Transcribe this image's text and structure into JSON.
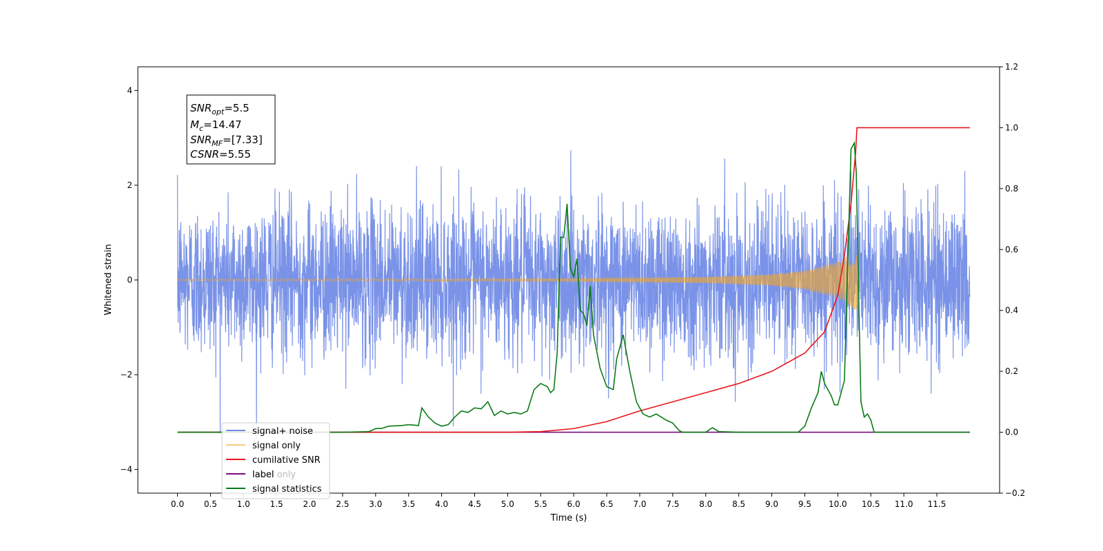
{
  "chart_data": {
    "type": "line",
    "title": "",
    "xlabel": "Time (s)",
    "ylabel": "Whitened strain",
    "y2label": "",
    "xlim": [
      -0.6,
      12.45
    ],
    "ylim": [
      -4.5,
      4.5
    ],
    "y2lim": [
      -0.2,
      1.2
    ],
    "x_ticks": [
      "0.0",
      "0.5",
      "1.0",
      "1.5",
      "2.0",
      "2.5",
      "3.0",
      "3.5",
      "4.0",
      "4.5",
      "5.0",
      "5.5",
      "6.0",
      "6.5",
      "7.0",
      "7.5",
      "8.0",
      "8.5",
      "9.0",
      "9.5",
      "10.0",
      "10.5",
      "11.0",
      "11.5"
    ],
    "y_ticks": [
      "4",
      "2",
      "0",
      "−2",
      "−4"
    ],
    "y2_ticks": [
      "1.2",
      "1.0",
      "0.8",
      "0.6",
      "0.4",
      "0.2",
      "0.0",
      "−0.2"
    ],
    "grid": false,
    "legend_position": "lower-left",
    "colors": {
      "signal_noise": "#6b87e6",
      "signal_only": "#f5a623",
      "cumulative_snr": "#e8141a",
      "label": "#7b0a7b",
      "signal_statistics": "#0a7a14"
    },
    "series": [
      {
        "name": "signal+ noise",
        "axis": "left",
        "kind": "noise",
        "x_range": [
          0.0,
          12.0
        ],
        "std": 0.8,
        "max_abs": 4.1
      },
      {
        "name": "signal only",
        "axis": "left",
        "kind": "chirp",
        "x_range": [
          0.0,
          10.3
        ],
        "envelope": [
          [
            0.0,
            0.02
          ],
          [
            6.0,
            0.03
          ],
          [
            8.0,
            0.06
          ],
          [
            9.0,
            0.12
          ],
          [
            9.5,
            0.2
          ],
          [
            10.0,
            0.38
          ],
          [
            10.2,
            0.55
          ],
          [
            10.28,
            0.65
          ]
        ]
      },
      {
        "name": "cumilative SNR",
        "axis": "right",
        "x": [
          0.0,
          5.0,
          5.5,
          6.0,
          6.5,
          7.0,
          7.5,
          8.0,
          8.5,
          9.0,
          9.5,
          9.8,
          10.0,
          10.1,
          10.2,
          10.27,
          10.29,
          12.0
        ],
        "y": [
          0.0,
          0.0,
          0.002,
          0.012,
          0.035,
          0.07,
          0.1,
          0.13,
          0.16,
          0.2,
          0.26,
          0.33,
          0.45,
          0.58,
          0.75,
          0.92,
          1.0,
          1.0
        ]
      },
      {
        "name": "label",
        "axis": "right",
        "x": [
          0.0,
          12.0
        ],
        "y": [
          0.0,
          0.0
        ]
      },
      {
        "name": "signal statistics",
        "axis": "right",
        "x": [
          0.0,
          2.5,
          2.9,
          3.0,
          3.1,
          3.2,
          3.4,
          3.5,
          3.65,
          3.7,
          3.8,
          3.9,
          4.0,
          4.1,
          4.2,
          4.3,
          4.4,
          4.5,
          4.6,
          4.7,
          4.8,
          4.9,
          5.0,
          5.1,
          5.2,
          5.3,
          5.4,
          5.5,
          5.55,
          5.6,
          5.65,
          5.7,
          5.75,
          5.8,
          5.85,
          5.9,
          5.95,
          6.0,
          6.05,
          6.1,
          6.15,
          6.2,
          6.25,
          6.3,
          6.4,
          6.5,
          6.6,
          6.65,
          6.75,
          6.85,
          6.95,
          7.05,
          7.15,
          7.25,
          7.4,
          7.5,
          7.6,
          7.65,
          8.0,
          8.1,
          8.2,
          8.5,
          9.4,
          9.5,
          9.6,
          9.7,
          9.75,
          9.8,
          9.9,
          9.95,
          10.0,
          10.05,
          10.1,
          10.15,
          10.2,
          10.25,
          10.28,
          10.32,
          10.35,
          10.4,
          10.45,
          10.5,
          10.55,
          12.0
        ],
        "y": [
          0.0,
          0.0,
          0.002,
          0.012,
          0.013,
          0.02,
          0.022,
          0.025,
          0.022,
          0.08,
          0.05,
          0.03,
          0.02,
          0.025,
          0.05,
          0.07,
          0.065,
          0.08,
          0.077,
          0.1,
          0.055,
          0.07,
          0.06,
          0.065,
          0.06,
          0.07,
          0.14,
          0.16,
          0.155,
          0.15,
          0.13,
          0.14,
          0.26,
          0.64,
          0.64,
          0.75,
          0.54,
          0.51,
          0.57,
          0.4,
          0.39,
          0.35,
          0.48,
          0.32,
          0.21,
          0.15,
          0.14,
          0.24,
          0.32,
          0.2,
          0.1,
          0.06,
          0.05,
          0.06,
          0.04,
          0.03,
          0.005,
          0.0,
          0.0,
          0.015,
          0.002,
          0.0,
          0.0,
          0.02,
          0.08,
          0.13,
          0.2,
          0.16,
          0.12,
          0.09,
          0.09,
          0.13,
          0.17,
          0.55,
          0.93,
          0.95,
          0.85,
          0.4,
          0.1,
          0.05,
          0.06,
          0.04,
          0.0,
          0.0
        ]
      }
    ],
    "annotation": {
      "snr_opt_base": "SNR",
      "snr_opt_sub": "opt",
      "snr_opt_value": "=5.5",
      "mc_base": "M",
      "mc_sub": "c",
      "mc_value": "=14.47",
      "snr_mf_base": "SNR",
      "snr_mf_sub": "MF",
      "snr_mf_value": "=[7.33]",
      "csnr_base": "CSNR",
      "csnr_value": "=5.55"
    },
    "legend": [
      "signal+ noise",
      "signal only",
      "cumilative SNR",
      "label",
      "signal statistics"
    ],
    "legend_ghost_text": "label only"
  }
}
